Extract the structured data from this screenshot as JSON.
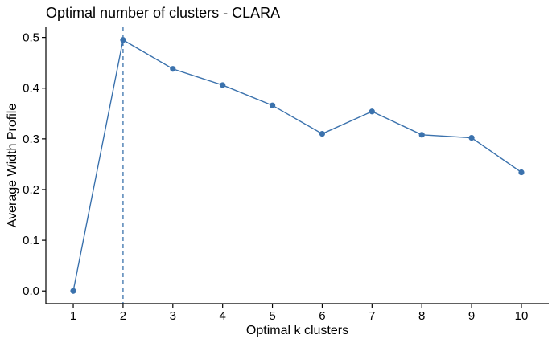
{
  "chart_data": {
    "type": "line",
    "title": "Optimal number of clusters - CLARA",
    "xlabel": "Optimal k clusters",
    "ylabel": "Average Width Profile",
    "x": [
      1,
      2,
      3,
      4,
      5,
      6,
      7,
      8,
      9,
      10
    ],
    "x_tick_labels": [
      "1",
      "2",
      "3",
      "4",
      "5",
      "6",
      "7",
      "8",
      "9",
      "10"
    ],
    "y_tick_labels": [
      "0.0",
      "0.1",
      "0.2",
      "0.3",
      "0.4",
      "0.5"
    ],
    "y_ticks": [
      0.0,
      0.1,
      0.2,
      0.3,
      0.4,
      0.5
    ],
    "xlim": [
      0.45,
      10.55
    ],
    "ylim": [
      -0.025,
      0.52
    ],
    "series": [
      {
        "values": [
          0.0,
          0.495,
          0.438,
          0.406,
          0.366,
          0.31,
          0.354,
          0.308,
          0.302,
          0.234
        ]
      }
    ],
    "optimal_k": 2,
    "grid": false,
    "legend": "none",
    "colors": {
      "series": "#3b72ad",
      "vline": "#3b72ad"
    }
  }
}
